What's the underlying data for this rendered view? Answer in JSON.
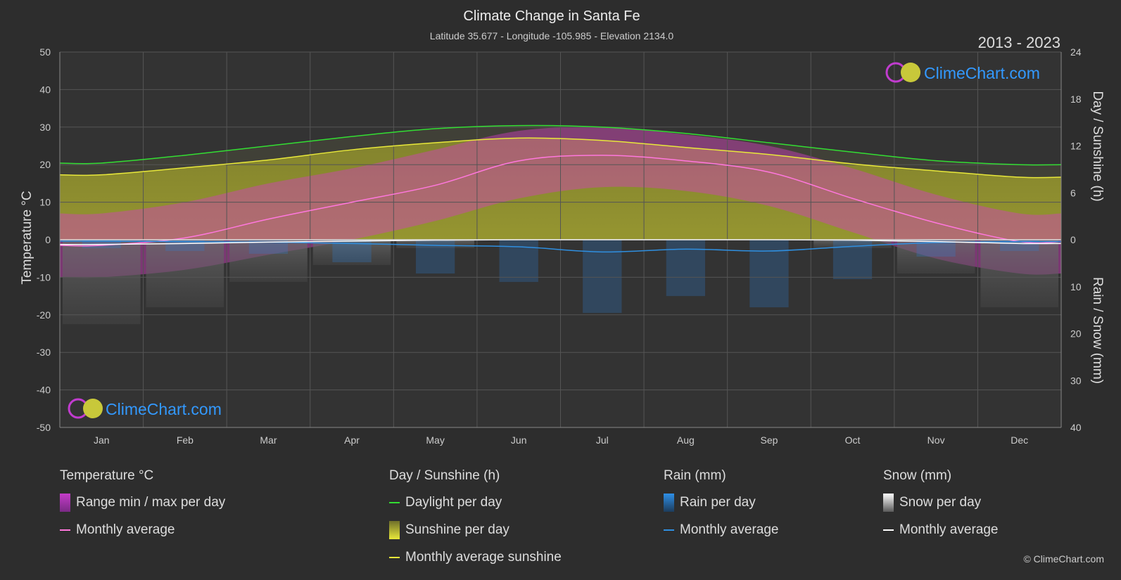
{
  "title": "Climate Change in Santa Fe",
  "subtitle": "Latitude 35.677 - Longitude -105.985 - Elevation 2134.0",
  "year_range": "2013 - 2023",
  "brand": "ClimeChart.com",
  "copyright": "© ClimeChart.com",
  "colors": {
    "background": "#2d2d2d",
    "daylight": "#33dd33",
    "sunshine_avg": "#e8e83a",
    "sunshine_fill": "#8f8f2e",
    "temp_range": "#d23fc0",
    "temp_avg": "#ff77dd",
    "rain": "#2e7fd0",
    "rain_avg": "#2f8fe0",
    "snow": "#888888",
    "snow_avg": "#ffffff",
    "brand_text": "#3399ff"
  },
  "legend": {
    "temperature": {
      "heading": "Temperature °C",
      "range": "Range min / max per day",
      "avg": "Monthly average"
    },
    "sunshine": {
      "heading": "Day / Sunshine (h)",
      "daylight": "Daylight per day",
      "sunshine": "Sunshine per day",
      "avg": "Monthly average sunshine"
    },
    "rain": {
      "heading": "Rain (mm)",
      "per_day": "Rain per day",
      "avg": "Monthly average"
    },
    "snow": {
      "heading": "Snow (mm)",
      "per_day": "Snow per day",
      "avg": "Monthly average"
    }
  },
  "chart_data": {
    "type": "area",
    "x_axis": {
      "categories": [
        "Jan",
        "Feb",
        "Mar",
        "Apr",
        "May",
        "Jun",
        "Jul",
        "Aug",
        "Sep",
        "Oct",
        "Nov",
        "Dec"
      ]
    },
    "y_left": {
      "label": "Temperature °C",
      "lim": [
        -50,
        50
      ],
      "ticks": [
        50,
        40,
        30,
        20,
        10,
        0,
        -10,
        -20,
        -30,
        -40,
        -50
      ]
    },
    "y_right_top": {
      "label": "Day / Sunshine (h)",
      "lim": [
        0,
        24
      ],
      "ticks": [
        24,
        18,
        12,
        6,
        0
      ]
    },
    "y_right_bottom": {
      "label": "Rain / Snow (mm)",
      "lim": [
        0,
        40
      ],
      "ticks": [
        0,
        10,
        20,
        30,
        40
      ]
    },
    "grid": true,
    "series": [
      {
        "name": "Daylight per day",
        "unit": "h",
        "values": [
          9.8,
          10.8,
          12.0,
          13.2,
          14.2,
          14.6,
          14.4,
          13.6,
          12.4,
          11.2,
          10.1,
          9.6
        ]
      },
      {
        "name": "Monthly average sunshine",
        "unit": "h",
        "values": [
          8.3,
          9.2,
          10.2,
          11.5,
          12.4,
          13.0,
          12.7,
          11.8,
          10.9,
          9.7,
          8.8,
          8.0
        ]
      },
      {
        "name": "Monthly average",
        "measure": "temperature",
        "unit": "°C",
        "values": [
          -1.5,
          0.5,
          5.5,
          10.0,
          14.5,
          21.0,
          22.5,
          21.0,
          18.0,
          11.0,
          4.5,
          -0.5
        ]
      },
      {
        "name": "Temperature max (approx)",
        "unit": "°C",
        "values": [
          7,
          10,
          15,
          19,
          24,
          29,
          30,
          28,
          25,
          19,
          12,
          7
        ]
      },
      {
        "name": "Temperature min (approx)",
        "unit": "°C",
        "values": [
          -10,
          -8,
          -4,
          0,
          5,
          11,
          14,
          13,
          9,
          2,
          -5,
          -9
        ]
      },
      {
        "name": "Rain monthly average",
        "unit": "mm",
        "values": [
          0.3,
          0.4,
          0.5,
          0.8,
          1.2,
          1.5,
          2.6,
          2.0,
          2.4,
          1.4,
          0.6,
          0.4
        ]
      },
      {
        "name": "Snow monthly average",
        "unit": "mm",
        "values": [
          1.0,
          0.8,
          0.5,
          0.3,
          0.1,
          0.0,
          0.0,
          0.0,
          0.0,
          0.1,
          0.4,
          0.8
        ]
      }
    ]
  }
}
